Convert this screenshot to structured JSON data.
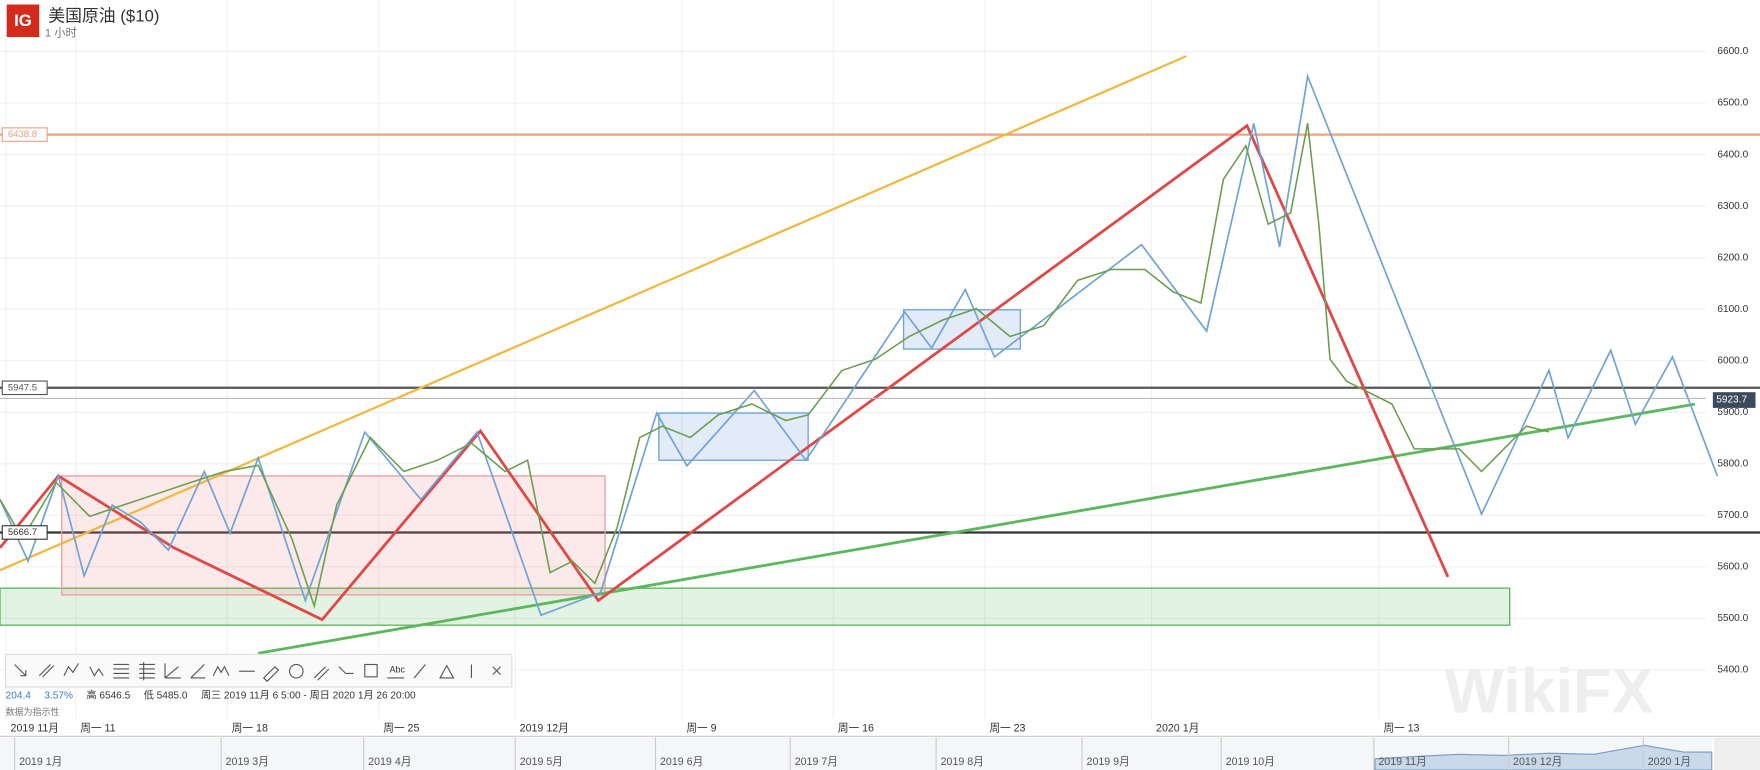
{
  "header": {
    "logo": "IG",
    "title": "美国原油 ($10)",
    "interval": "1 小时",
    "info": [
      "204.4",
      "3.57%",
      "高 6546.5",
      "低 5485.0",
      "周三 2019 11月 6 5:00 - 周日 2020 1月 26 20:00"
    ],
    "note": "数据为指示性",
    "watermark": "WikiFX"
  },
  "navigator": {
    "labels": [
      "2019 1月",
      "2019 3月",
      "2019 4月",
      "2019 5月",
      "2019 6月",
      "2019 7月",
      "2019 8月",
      "2019 9月",
      "2019 10月",
      "2019 11月",
      "2019 12月",
      "2020 1月"
    ]
  },
  "chart_data": {
    "type": "line",
    "color": "#6b9e4f",
    "x": [
      -2.5,
      -1.76,
      -0.65,
      0.46,
      1.57,
      2.69,
      3.8,
      4.91,
      6.02,
      7.13,
      7.87,
      8.61,
      9.72,
      10.83,
      11.94,
      13.06,
      14.17,
      14.91,
      15.65,
      16.39,
      17.13,
      17.87,
      18.61,
      19.35,
      20.28,
      21.2,
      22.31,
      23.43,
      24.17,
      25.28,
      26.39,
      27.5,
      28.61,
      29.72,
      30.83,
      31.94,
      33.06,
      34.17,
      35.28,
      36.2,
      37.13,
      37.87,
      38.61,
      39.35,
      40.09,
      40.65,
      41.02,
      41.39,
      41.94,
      42.69,
      43.43,
      44.17,
      44.91,
      45.65,
      46.39,
      47.13,
      47.87,
      48.61
    ],
    "values": [
      5731,
      5655,
      5764,
      5698,
      5720,
      5742,
      5764,
      5785,
      5797,
      5655,
      5524,
      5720,
      5851,
      5785,
      5807,
      5840,
      5785,
      5807,
      5589,
      5611,
      5568,
      5677,
      5851,
      5873,
      5851,
      5895,
      5916,
      5884,
      5895,
      5981,
      6003,
      6047,
      6079,
      6101,
      6047,
      6068,
      6156,
      6177,
      6177,
      6134,
      6112,
      6352,
      6417,
      6265,
      6287,
      6461,
      6265,
      6003,
      5960,
      5938,
      5916,
      5829,
      5829,
      5829,
      5785,
      5829,
      5873,
      5862
    ],
    "xlim": [
      -2.5,
      53.8
    ],
    "ylim": [
      5306,
      6700
    ],
    "xticks": [
      {
        "value": -2.3,
        "label": "2019 11月"
      },
      {
        "value": 0,
        "label": "周一 11"
      },
      {
        "value": 5,
        "label": "周一 18"
      },
      {
        "value": 10,
        "label": "周一 25"
      },
      {
        "value": 14.5,
        "label": "2019 12月"
      },
      {
        "value": 20,
        "label": "周一 9"
      },
      {
        "value": 25,
        "label": "周一 16"
      },
      {
        "value": 30,
        "label": "周一 23"
      },
      {
        "value": 35.5,
        "label": "2020 1月"
      },
      {
        "value": 43,
        "label": "周一 13"
      }
    ],
    "yticks": [
      {
        "value": 5400,
        "label": "5400.0"
      },
      {
        "value": 5500,
        "label": "5500.0"
      },
      {
        "value": 5600,
        "label": "5600.0"
      },
      {
        "value": 5700,
        "label": "5700.0"
      },
      {
        "value": 5800,
        "label": "5800.0"
      },
      {
        "value": 5900,
        "label": "5900.0"
      },
      {
        "value": 6000,
        "label": "6000.0"
      },
      {
        "value": 6100,
        "label": "6100.0"
      },
      {
        "value": 6200,
        "label": "6200.0"
      },
      {
        "value": 6300,
        "label": "6300.0"
      },
      {
        "value": 6400,
        "label": "6400.0"
      },
      {
        "value": 6500,
        "label": "6500.0"
      },
      {
        "value": 6600,
        "label": "6600.0"
      }
    ],
    "grid": true,
    "levels": [
      {
        "value": 6438.8,
        "color": "#f0a080"
      },
      {
        "value": 5947.5,
        "color": "#555555"
      },
      {
        "value": 5666.7,
        "color": "#333333"
      }
    ],
    "last_price": 5923.7
  }
}
